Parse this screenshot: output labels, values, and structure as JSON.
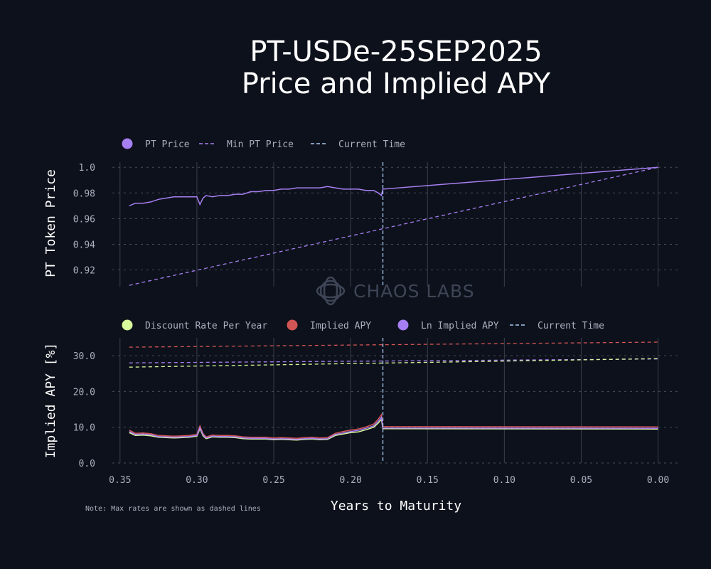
{
  "title_line1": "PT-USDe-25SEP2025",
  "title_line2": "Price and Implied APY",
  "watermark": "CHAOS LABS",
  "note": "Note: Max rates are shown as dashed lines",
  "colors": {
    "background": "#0d111b",
    "pt_price": "#a67ff2",
    "current_time": "#a9c8f2",
    "discount": "#d9f99d",
    "implied_apy": "#d25555",
    "ln_implied_apy": "#a67ff2",
    "grid": "#3a3f4c"
  },
  "chart_data": [
    {
      "type": "line",
      "ylabel": "PT Token Price",
      "xlabel": "",
      "x_reversed": true,
      "xlim": [
        0.355,
        -0.015
      ],
      "ylim": [
        0.907,
        1.004
      ],
      "xticks": [
        0.35,
        0.3,
        0.25,
        0.2,
        0.15,
        0.1,
        0.05,
        0.0
      ],
      "yticks": [
        0.92,
        0.94,
        0.96,
        0.98,
        1.0
      ],
      "ytick_labels": [
        "0.92",
        "0.94",
        "0.96",
        "0.98",
        "1.0"
      ],
      "grid": true,
      "legend_position": "top-left",
      "legend": [
        "PT Price",
        "Min PT Price",
        "Current Time"
      ],
      "current_time": 0.179,
      "series": [
        {
          "name": "PT Price",
          "style": "solid",
          "x": [
            0.344,
            0.34,
            0.335,
            0.33,
            0.325,
            0.32,
            0.315,
            0.31,
            0.305,
            0.3,
            0.298,
            0.296,
            0.294,
            0.29,
            0.285,
            0.28,
            0.275,
            0.27,
            0.265,
            0.26,
            0.255,
            0.25,
            0.245,
            0.24,
            0.235,
            0.23,
            0.225,
            0.22,
            0.215,
            0.21,
            0.205,
            0.2,
            0.195,
            0.19,
            0.185,
            0.182,
            0.18,
            0.179,
            0.0
          ],
          "y": [
            0.97,
            0.972,
            0.972,
            0.973,
            0.975,
            0.976,
            0.977,
            0.977,
            0.977,
            0.977,
            0.971,
            0.976,
            0.978,
            0.977,
            0.978,
            0.978,
            0.979,
            0.979,
            0.981,
            0.981,
            0.982,
            0.982,
            0.983,
            0.983,
            0.984,
            0.984,
            0.984,
            0.984,
            0.985,
            0.984,
            0.983,
            0.983,
            0.983,
            0.982,
            0.982,
            0.98,
            0.978,
            0.983,
            1.0
          ]
        },
        {
          "name": "Min PT Price",
          "style": "dashed",
          "x": [
            0.344,
            0.0
          ],
          "y": [
            0.908,
            1.0
          ]
        }
      ]
    },
    {
      "type": "line",
      "ylabel": "Implied APY [%]",
      "xlabel": "Years to Maturity",
      "x_reversed": true,
      "xlim": [
        0.355,
        -0.015
      ],
      "ylim": [
        0,
        35
      ],
      "xticks": [
        0.35,
        0.3,
        0.25,
        0.2,
        0.15,
        0.1,
        0.05,
        0.0
      ],
      "xtick_labels": [
        "0.35",
        "0.30",
        "0.25",
        "0.20",
        "0.15",
        "0.10",
        "0.05",
        "0.00"
      ],
      "yticks": [
        0,
        10,
        20,
        30
      ],
      "ytick_labels": [
        "0.0",
        "10.0",
        "20.0",
        "30.0"
      ],
      "grid": true,
      "legend_position": "top-left",
      "legend": [
        "Discount Rate Per Year",
        "Implied APY",
        "Ln Implied APY",
        "Current Time"
      ],
      "current_time": 0.179,
      "series": [
        {
          "name": "Discount Rate Per Year",
          "style": "solid",
          "x": [
            0.344,
            0.34,
            0.335,
            0.33,
            0.325,
            0.32,
            0.315,
            0.31,
            0.305,
            0.3,
            0.298,
            0.296,
            0.294,
            0.29,
            0.285,
            0.28,
            0.275,
            0.27,
            0.265,
            0.26,
            0.255,
            0.25,
            0.245,
            0.24,
            0.235,
            0.23,
            0.225,
            0.22,
            0.215,
            0.21,
            0.205,
            0.2,
            0.195,
            0.19,
            0.185,
            0.182,
            0.18,
            0.179,
            0.0
          ],
          "y": [
            8.5,
            7.7,
            7.8,
            7.6,
            7.2,
            7.1,
            7.0,
            7.1,
            7.2,
            7.5,
            9.6,
            7.6,
            6.8,
            7.3,
            7.2,
            7.2,
            7.1,
            6.8,
            6.7,
            6.7,
            6.7,
            6.5,
            6.6,
            6.5,
            6.4,
            6.6,
            6.7,
            6.5,
            6.6,
            7.7,
            8.1,
            8.5,
            8.7,
            9.3,
            10.0,
            11.2,
            12.2,
            9.6,
            9.5
          ]
        },
        {
          "name": "Implied APY",
          "style": "solid",
          "x": [
            0.344,
            0.34,
            0.335,
            0.33,
            0.325,
            0.32,
            0.315,
            0.31,
            0.305,
            0.3,
            0.298,
            0.296,
            0.294,
            0.29,
            0.285,
            0.28,
            0.275,
            0.27,
            0.265,
            0.26,
            0.255,
            0.25,
            0.245,
            0.24,
            0.235,
            0.23,
            0.225,
            0.22,
            0.215,
            0.21,
            0.205,
            0.2,
            0.195,
            0.19,
            0.185,
            0.182,
            0.18,
            0.179,
            0.0
          ],
          "y": [
            9.2,
            8.3,
            8.4,
            8.2,
            7.7,
            7.6,
            7.5,
            7.6,
            7.7,
            8.0,
            10.4,
            8.2,
            7.3,
            7.8,
            7.7,
            7.7,
            7.6,
            7.3,
            7.2,
            7.2,
            7.2,
            7.0,
            7.1,
            7.0,
            6.9,
            7.1,
            7.2,
            7.0,
            7.1,
            8.3,
            8.8,
            9.2,
            9.5,
            10.1,
            10.9,
            12.3,
            13.5,
            10.2,
            10.1
          ]
        },
        {
          "name": "Ln Implied APY",
          "style": "solid",
          "x": [
            0.344,
            0.34,
            0.335,
            0.33,
            0.325,
            0.32,
            0.315,
            0.31,
            0.305,
            0.3,
            0.298,
            0.296,
            0.294,
            0.29,
            0.285,
            0.28,
            0.275,
            0.27,
            0.265,
            0.26,
            0.255,
            0.25,
            0.245,
            0.24,
            0.235,
            0.23,
            0.225,
            0.22,
            0.215,
            0.21,
            0.205,
            0.2,
            0.195,
            0.19,
            0.185,
            0.182,
            0.18,
            0.179,
            0.0
          ],
          "y": [
            8.8,
            8.0,
            8.1,
            7.9,
            7.4,
            7.3,
            7.2,
            7.3,
            7.4,
            7.7,
            9.9,
            7.9,
            7.0,
            7.5,
            7.4,
            7.4,
            7.3,
            7.0,
            6.9,
            6.9,
            6.9,
            6.7,
            6.8,
            6.7,
            6.6,
            6.8,
            6.9,
            6.7,
            6.8,
            8.0,
            8.4,
            8.8,
            9.1,
            9.7,
            10.4,
            11.7,
            12.8,
            9.8,
            9.7
          ]
        },
        {
          "name": "Implied APY",
          "style": "dashed",
          "x": [
            0.344,
            0.0
          ],
          "y": [
            32.4,
            33.8
          ]
        },
        {
          "name": "Ln Implied APY",
          "style": "dashed",
          "x": [
            0.344,
            0.0
          ],
          "y": [
            28.0,
            29.1
          ]
        },
        {
          "name": "Discount Rate Per Year",
          "style": "dashed",
          "x": [
            0.344,
            0.0
          ],
          "y": [
            26.8,
            29.2
          ]
        }
      ]
    }
  ]
}
